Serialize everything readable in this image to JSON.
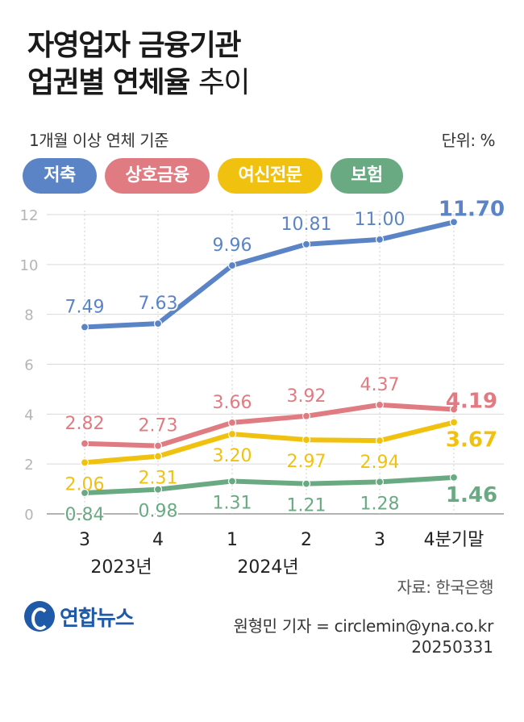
{
  "title": {
    "line1": "자영업자 금융기관",
    "line2_bold": "업권별 연체율",
    "line2_light": "추이"
  },
  "subtitle": "1개월 이상 연체 기준",
  "unit": "단위: %",
  "legend": [
    "저축",
    "상호금융",
    "여신전문",
    "보험"
  ],
  "source": "자료: 한국은행",
  "logo_text": "연합뉴스",
  "credit": "원형민 기자 = circlemin@yna.co.kr",
  "date": "20250331",
  "chart_data": {
    "type": "line",
    "categories": [
      "3",
      "4",
      "1",
      "2",
      "3",
      "4분기말"
    ],
    "year_labels": [
      {
        "label": "2023년",
        "index": 0.5
      },
      {
        "label": "2024년",
        "index": 2.5
      }
    ],
    "yticks": [
      0,
      2,
      4,
      6,
      8,
      10,
      12
    ],
    "ylim": [
      0,
      12
    ],
    "grid": true,
    "series": [
      {
        "name": "저축",
        "color": "#5b84c7",
        "values": [
          7.49,
          7.63,
          9.96,
          10.81,
          11.0,
          11.7
        ],
        "labels": [
          "7.49",
          "7.63",
          "9.96",
          "10.81",
          "11.00",
          "11.70"
        ],
        "label_pos": "above"
      },
      {
        "name": "상호금융",
        "color": "#e07b82",
        "values": [
          2.82,
          2.73,
          3.66,
          3.92,
          4.37,
          4.19
        ],
        "labels": [
          "2.82",
          "2.73",
          "3.66",
          "3.92",
          "4.37",
          "4.19"
        ],
        "label_pos": "above"
      },
      {
        "name": "여신전문",
        "color": "#f0c20f",
        "values": [
          2.06,
          2.31,
          3.2,
          2.97,
          2.94,
          3.67
        ],
        "labels": [
          "2.06",
          "2.31",
          "3.20",
          "2.97",
          "2.94",
          "3.67"
        ],
        "label_pos": "below"
      },
      {
        "name": "보험",
        "color": "#6aaa83",
        "values": [
          0.84,
          0.98,
          1.31,
          1.21,
          1.28,
          1.46
        ],
        "labels": [
          "0.84",
          "0.98",
          "1.31",
          "1.21",
          "1.28",
          "1.46"
        ],
        "label_pos": "below"
      }
    ]
  }
}
